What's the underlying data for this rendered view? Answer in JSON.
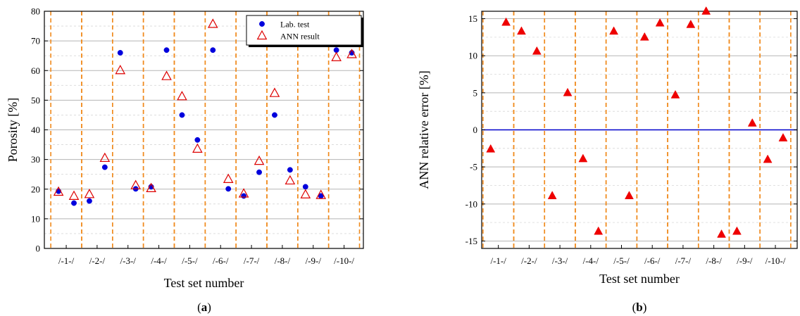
{
  "chart_data": [
    {
      "type": "scatter",
      "panel_label": "a",
      "ylabel": "Porosity [%]",
      "xlabel": "Test set number",
      "ylim": [
        0,
        80
      ],
      "yticks": [
        0,
        10,
        20,
        30,
        40,
        50,
        60,
        70,
        80
      ],
      "grid": true,
      "legend_position": "top-right",
      "categories": [
        "/-1-/",
        "/-2-/",
        "/-3-/",
        "/-4-/",
        "/-5-/",
        "/-6-/",
        "/-7-/",
        "/-8-/",
        "/-9-/",
        "/-10-/"
      ],
      "series": [
        {
          "name": "Lab. test",
          "marker": "circle",
          "color": "#0000dd",
          "points": [
            [
              0.0,
              19.3
            ],
            [
              0.6,
              15.3
            ],
            [
              1.2,
              16.0
            ],
            [
              1.8,
              27.4
            ],
            [
              2.4,
              66.0
            ],
            [
              3.0,
              20.1
            ],
            [
              3.6,
              20.8
            ],
            [
              4.2,
              66.9
            ],
            [
              4.8,
              45.0
            ],
            [
              5.4,
              36.6
            ],
            [
              6.0,
              66.9
            ],
            [
              6.6,
              20.1
            ],
            [
              7.2,
              17.7
            ],
            [
              7.8,
              25.7
            ],
            [
              8.4,
              45.0
            ],
            [
              9.0,
              26.5
            ],
            [
              9.6,
              20.8
            ],
            [
              10.2,
              17.7
            ],
            [
              10.8,
              66.9
            ],
            [
              11.4,
              66.0
            ]
          ]
        },
        {
          "name": "ANN result",
          "marker": "triangle-open",
          "color": "#dd0000",
          "points": [
            [
              0.0,
              19.0
            ],
            [
              0.6,
              17.6
            ],
            [
              1.2,
              18.2
            ],
            [
              1.8,
              30.4
            ],
            [
              2.4,
              60.0
            ],
            [
              3.0,
              21.2
            ],
            [
              3.6,
              20.2
            ],
            [
              4.2,
              58.0
            ],
            [
              4.8,
              51.2
            ],
            [
              5.4,
              33.5
            ],
            [
              6.0,
              75.6
            ],
            [
              6.6,
              23.3
            ],
            [
              7.2,
              18.4
            ],
            [
              7.8,
              29.4
            ],
            [
              8.4,
              52.3
            ],
            [
              9.0,
              22.8
            ],
            [
              9.6,
              18.1
            ],
            [
              10.2,
              17.9
            ],
            [
              10.8,
              64.4
            ],
            [
              11.4,
              65.4
            ]
          ]
        }
      ]
    },
    {
      "type": "scatter",
      "panel_label": "b",
      "ylabel": "ANN relative error [%]",
      "xlabel": "Test set number",
      "ylim": [
        -16,
        16
      ],
      "yticks": [
        -15,
        -10,
        -5,
        0,
        5,
        10,
        15
      ],
      "grid": true,
      "categories": [
        "/-1-/",
        "/-2-/",
        "/-3-/",
        "/-4-/",
        "/-5-/",
        "/-6-/",
        "/-7-/",
        "/-8-/",
        "/-9-/",
        "/-10-/"
      ],
      "zero_line_color": "#0000cc",
      "series": [
        {
          "name": "",
          "marker": "triangle-filled",
          "color": "#ee0000",
          "points": [
            [
              0.0,
              -2.6
            ],
            [
              0.6,
              14.5
            ],
            [
              1.2,
              13.3
            ],
            [
              1.8,
              10.6
            ],
            [
              2.4,
              -8.9
            ],
            [
              3.0,
              5.0
            ],
            [
              3.6,
              -3.9
            ],
            [
              4.2,
              -13.7
            ],
            [
              4.8,
              13.3
            ],
            [
              5.4,
              -8.9
            ],
            [
              6.0,
              12.5
            ],
            [
              6.6,
              14.4
            ],
            [
              7.2,
              4.7
            ],
            [
              7.8,
              14.2
            ],
            [
              8.4,
              16.0
            ],
            [
              9.0,
              -14.1
            ],
            [
              9.6,
              -13.7
            ],
            [
              10.2,
              0.9
            ],
            [
              10.8,
              -4.0
            ],
            [
              11.4,
              -1.1
            ]
          ]
        }
      ]
    }
  ]
}
